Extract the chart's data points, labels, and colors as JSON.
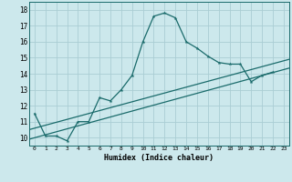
{
  "xlabel": "Humidex (Indice chaleur)",
  "bg_color": "#cce8ec",
  "grid_color": "#aacdd4",
  "line_color": "#1a6b6b",
  "xlim": [
    -0.5,
    23.5
  ],
  "ylim": [
    9.5,
    18.5
  ],
  "yticks": [
    10,
    11,
    12,
    13,
    14,
    15,
    16,
    17,
    18
  ],
  "xticks": [
    0,
    1,
    2,
    3,
    4,
    5,
    6,
    7,
    8,
    9,
    10,
    11,
    12,
    13,
    14,
    15,
    16,
    17,
    18,
    19,
    20,
    21,
    22,
    23
  ],
  "curve1_x": [
    0,
    1,
    2,
    3,
    4,
    5,
    6,
    7,
    8,
    9,
    10,
    11,
    12,
    13,
    14,
    15,
    16,
    17,
    18,
    19,
    20,
    21,
    22
  ],
  "curve1_y": [
    11.5,
    10.1,
    10.1,
    9.8,
    11.0,
    11.0,
    12.5,
    12.3,
    13.0,
    13.9,
    16.0,
    17.6,
    17.8,
    17.5,
    16.0,
    15.6,
    15.1,
    14.7,
    14.6,
    14.6,
    13.5,
    13.9,
    14.1
  ],
  "line2_x": [
    -0.5,
    23.5
  ],
  "line2_y": [
    10.5,
    14.9
  ],
  "line3_x": [
    -0.5,
    23.5
  ],
  "line3_y": [
    9.9,
    14.35
  ]
}
